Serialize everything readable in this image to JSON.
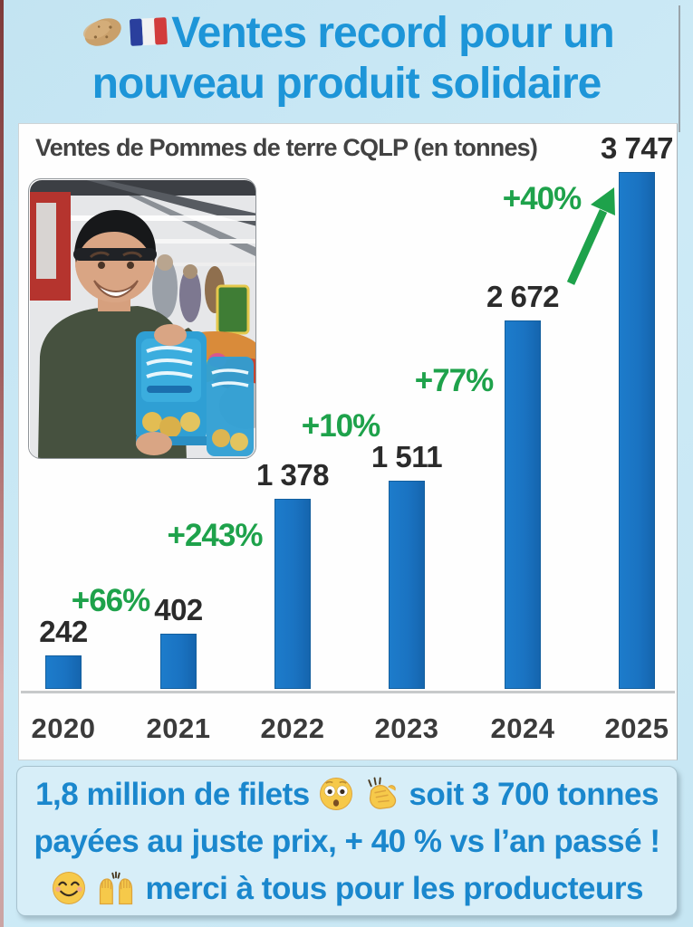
{
  "header": {
    "title_line1": "Ventes record pour un",
    "title_line2": "nouveau produit solidaire",
    "icons": [
      "potato-icon",
      "french-flag-icon"
    ],
    "accent_color": "#1d95d8"
  },
  "chart": {
    "title": "Ventes de Pommes de terre CQLP (en tonnes)"
  },
  "chart_data": {
    "type": "bar",
    "title": "Ventes de Pommes de terre CQLP (en tonnes)",
    "categories": [
      "2020",
      "2021",
      "2022",
      "2023",
      "2024",
      "2025"
    ],
    "values": [
      242,
      402,
      1378,
      1511,
      2672,
      3747
    ],
    "display_values": [
      "242",
      "402",
      "1 378",
      "1 511",
      "2 672",
      "3 747"
    ],
    "growth_labels": [
      "+66%",
      "+243%",
      "+10%",
      "+77%",
      "+40%"
    ],
    "unit": "tonnes",
    "xlabel": "",
    "ylabel": "",
    "ylim": [
      0,
      3900
    ],
    "grid": false,
    "legend": "none",
    "bar_color": "#1a73c2",
    "growth_color": "#1ea24b",
    "value_color": "#2b2b2b",
    "annotations": [
      {
        "text": "+40%",
        "type": "arrow-up-right",
        "color": "#1ea24b",
        "target": "2025"
      }
    ]
  },
  "photo": {
    "description": "Homme souriant avec bonnet noir tenant des filets bleus de pommes de terre dans un supermarché"
  },
  "footer": {
    "line1_before": "1,8 million de filets",
    "line1_icons": [
      "flushed-face-icon",
      "clapping-hands-icon"
    ],
    "line1_after": "soit 3 700 tonnes",
    "line2": "payées au juste prix, + 40 % vs l’an passé !",
    "line3_icons": [
      "smiling-face-icon",
      "raising-hands-icon"
    ],
    "line3": "merci à tous pour les producteurs",
    "text_color": "#1a87cd"
  },
  "colors": {
    "background": "#c9e7f4",
    "card_background": "#fefefe",
    "footer_background": "#d7eef8"
  }
}
